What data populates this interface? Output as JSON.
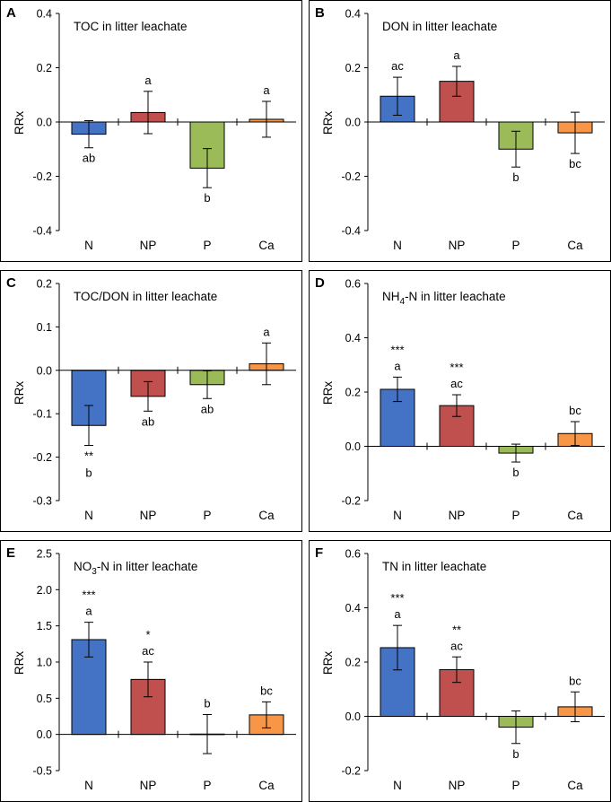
{
  "colors": {
    "N": "#4472C4",
    "NP": "#C0504D",
    "P": "#9BBB59",
    "Ca": "#F79646"
  },
  "chart_data": [
    {
      "letter": "A",
      "title": "TOC in litter leachate",
      "type": "bar",
      "ylabel": "RRx",
      "categories": [
        "N",
        "NP",
        "P",
        "Ca"
      ],
      "ylim": [
        -0.4,
        0.4
      ],
      "yticks": [
        -0.4,
        -0.2,
        0.0,
        0.2,
        0.4
      ],
      "ytick_labels": [
        "-0.4",
        "-0.2",
        "0.0",
        "0.2",
        "0.4"
      ],
      "values": [
        -0.045,
        0.035,
        -0.17,
        0.01
      ],
      "errors": [
        0.05,
        0.078,
        0.072,
        0.066
      ],
      "letters": [
        "ab",
        "a",
        "b",
        "a"
      ],
      "stars": [
        "",
        "",
        "",
        ""
      ]
    },
    {
      "letter": "B",
      "title": "DON in litter leachate",
      "type": "bar",
      "ylabel": "RRx",
      "categories": [
        "N",
        "NP",
        "P",
        "Ca"
      ],
      "ylim": [
        -0.4,
        0.4
      ],
      "yticks": [
        -0.4,
        -0.2,
        0.0,
        0.2,
        0.4
      ],
      "ytick_labels": [
        "-0.4",
        "-0.2",
        "0.0",
        "0.2",
        "0.4"
      ],
      "values": [
        0.095,
        0.15,
        -0.1,
        -0.04
      ],
      "errors": [
        0.07,
        0.055,
        0.066,
        0.076
      ],
      "letters": [
        "ac",
        "a",
        "b",
        "bc"
      ],
      "stars": [
        "",
        "",
        "",
        ""
      ]
    },
    {
      "letter": "C",
      "title": "TOC/DON in litter leachate",
      "type": "bar",
      "ylabel": "RRx",
      "categories": [
        "N",
        "NP",
        "P",
        "Ca"
      ],
      "ylim": [
        -0.3,
        0.2
      ],
      "yticks": [
        -0.3,
        -0.2,
        -0.1,
        0.0,
        0.1,
        0.2
      ],
      "ytick_labels": [
        "-0.3",
        "-0.2",
        "-0.1",
        "0.0",
        "0.1",
        "0.2"
      ],
      "values": [
        -0.127,
        -0.06,
        -0.033,
        0.015
      ],
      "errors": [
        0.046,
        0.034,
        0.032,
        0.048
      ],
      "letters": [
        "b",
        "ab",
        "ab",
        "a"
      ],
      "stars": [
        "**",
        "",
        "",
        ""
      ]
    },
    {
      "letter": "D",
      "title_main": "NH",
      "title_sub": "4",
      "title_rest": "-N in litter leachate",
      "type": "bar",
      "ylabel": "RRx",
      "categories": [
        "N",
        "NP",
        "P",
        "Ca"
      ],
      "ylim": [
        -0.2,
        0.6
      ],
      "yticks": [
        -0.2,
        0.0,
        0.2,
        0.4,
        0.6
      ],
      "ytick_labels": [
        "-0.2",
        "0.0",
        "0.2",
        "0.4",
        "0.6"
      ],
      "values": [
        0.21,
        0.15,
        -0.025,
        0.047
      ],
      "errors": [
        0.045,
        0.04,
        0.033,
        0.044
      ],
      "letters": [
        "a",
        "ac",
        "b",
        "bc"
      ],
      "stars": [
        "***",
        "***",
        "",
        ""
      ]
    },
    {
      "letter": "E",
      "title_main": "NO",
      "title_sub": "3",
      "title_rest": "-N in litter leachate",
      "type": "bar",
      "ylabel": "RRx",
      "categories": [
        "N",
        "NP",
        "P",
        "Ca"
      ],
      "ylim": [
        -0.5,
        2.5
      ],
      "yticks": [
        -0.5,
        0.0,
        0.5,
        1.0,
        1.5,
        2.0,
        2.5
      ],
      "ytick_labels": [
        "-0.5",
        "0.0",
        "0.5",
        "1.0",
        "1.5",
        "2.0",
        "2.5"
      ],
      "values": [
        1.31,
        0.76,
        0.005,
        0.27
      ],
      "errors": [
        0.24,
        0.24,
        0.27,
        0.18
      ],
      "letters": [
        "a",
        "ac",
        "b",
        "bc"
      ],
      "stars": [
        "***",
        "*",
        "",
        ""
      ]
    },
    {
      "letter": "F",
      "title": "TN in litter leachate",
      "type": "bar",
      "ylabel": "RRx",
      "categories": [
        "N",
        "NP",
        "P",
        "Ca"
      ],
      "ylim": [
        -0.2,
        0.6
      ],
      "yticks": [
        -0.2,
        0.0,
        0.2,
        0.4,
        0.6
      ],
      "ytick_labels": [
        "-0.2",
        "0.0",
        "0.2",
        "0.4",
        "0.6"
      ],
      "values": [
        0.253,
        0.172,
        -0.04,
        0.035
      ],
      "errors": [
        0.082,
        0.047,
        0.06,
        0.055
      ],
      "letters": [
        "a",
        "ac",
        "b",
        "bc"
      ],
      "stars": [
        "***",
        "**",
        "",
        ""
      ]
    }
  ]
}
